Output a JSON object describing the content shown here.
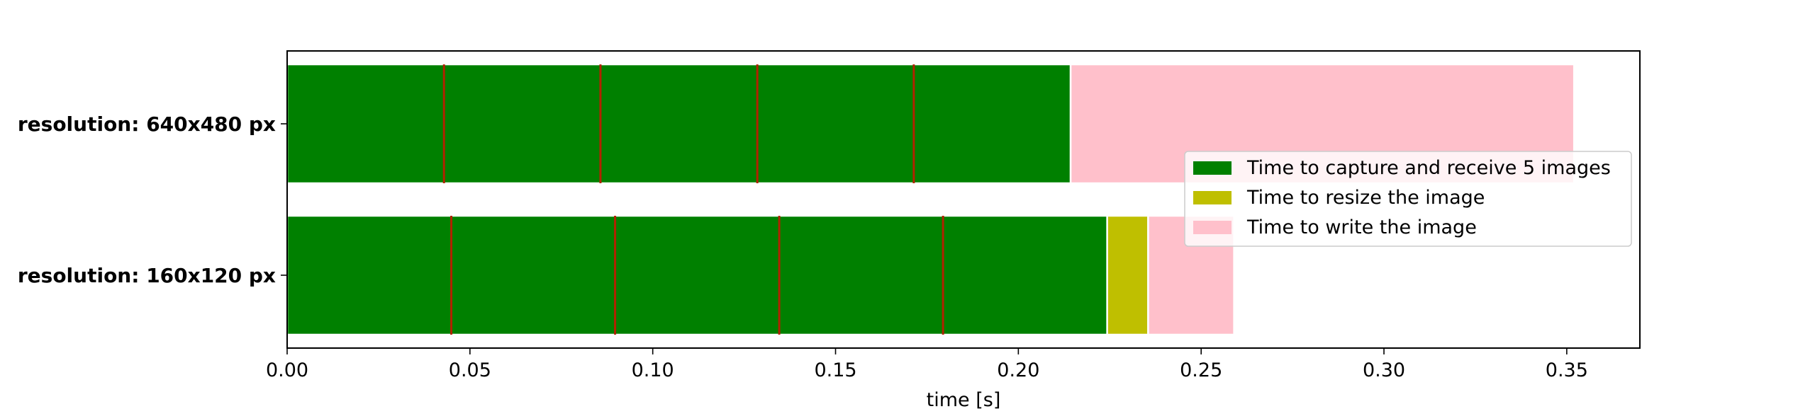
{
  "chart_data": {
    "type": "bar",
    "orientation": "horizontal",
    "stacked": true,
    "xlabel": "time [s]",
    "xlim": [
      0,
      0.37
    ],
    "xticks": [
      0.0,
      0.05,
      0.1,
      0.15,
      0.2,
      0.25,
      0.3,
      0.35
    ],
    "xtick_labels": [
      "0.00",
      "0.05",
      "0.10",
      "0.15",
      "0.20",
      "0.25",
      "0.30",
      "0.35"
    ],
    "categories": [
      "resolution: 640x480 px",
      "resolution: 160x120 px"
    ],
    "series": [
      {
        "name": "Time to capture and receive 5 images",
        "color": "#008000",
        "values": [
          0.2143,
          0.2243
        ]
      },
      {
        "name": "Time to resize the image",
        "color": "#bfbf00",
        "values": [
          0.0,
          0.0112
        ]
      },
      {
        "name": "Time to write the image",
        "color": "#ffc0cb",
        "values": [
          0.1377,
          0.0235
        ]
      }
    ],
    "markers": {
      "color": "#b22200",
      "values": [
        [
          0.0429,
          0.0857,
          0.1286,
          0.1714
        ],
        [
          0.0449,
          0.0897,
          0.1346,
          0.1794
        ]
      ]
    },
    "legend_placement": "center-right",
    "grid": false
  }
}
